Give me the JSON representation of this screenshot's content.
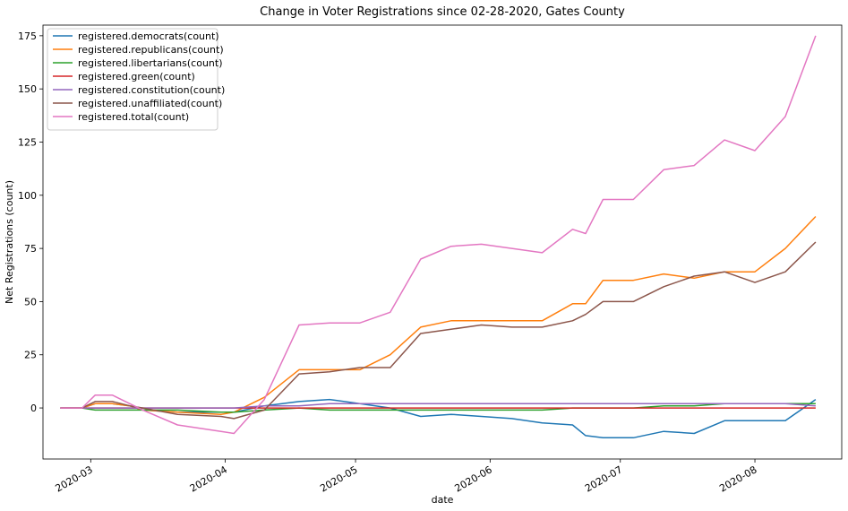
{
  "chart_data": {
    "type": "line",
    "title": "Change in Voter Registrations since 02-28-2020, Gates County",
    "xlabel": "date",
    "ylabel": "Net Registrations (count)",
    "x_axis_type": "date",
    "xlim": [
      "2020-02-19",
      "2020-08-21"
    ],
    "ylim": [
      -24,
      180
    ],
    "x_ticks": [
      {
        "date": "2020-03-01",
        "label": "2020-03"
      },
      {
        "date": "2020-04-01",
        "label": "2020-04"
      },
      {
        "date": "2020-05-01",
        "label": "2020-05"
      },
      {
        "date": "2020-06-01",
        "label": "2020-06"
      },
      {
        "date": "2020-07-01",
        "label": "2020-07"
      },
      {
        "date": "2020-08-01",
        "label": "2020-08"
      }
    ],
    "y_ticks": [
      0,
      25,
      50,
      75,
      100,
      125,
      150,
      175
    ],
    "grid": false,
    "legend_position": "top-left",
    "series": [
      {
        "name": "registered.democrats(count)",
        "color": "#1f77b4",
        "points": [
          [
            "2020-02-23",
            0
          ],
          [
            "2020-02-28",
            0
          ],
          [
            "2020-03-02",
            2
          ],
          [
            "2020-03-06",
            2
          ],
          [
            "2020-03-10",
            1
          ],
          [
            "2020-03-13",
            -1
          ],
          [
            "2020-03-21",
            -2
          ],
          [
            "2020-03-31",
            -2
          ],
          [
            "2020-04-03",
            -2
          ],
          [
            "2020-04-10",
            1
          ],
          [
            "2020-04-18",
            3
          ],
          [
            "2020-04-25",
            4
          ],
          [
            "2020-05-02",
            2
          ],
          [
            "2020-05-09",
            0
          ],
          [
            "2020-05-16",
            -4
          ],
          [
            "2020-05-23",
            -3
          ],
          [
            "2020-05-30",
            -4
          ],
          [
            "2020-06-06",
            -5
          ],
          [
            "2020-06-13",
            -7
          ],
          [
            "2020-06-20",
            -8
          ],
          [
            "2020-06-23",
            -13
          ],
          [
            "2020-06-27",
            -14
          ],
          [
            "2020-07-04",
            -14
          ],
          [
            "2020-07-11",
            -11
          ],
          [
            "2020-07-18",
            -12
          ],
          [
            "2020-07-25",
            -6
          ],
          [
            "2020-08-01",
            -6
          ],
          [
            "2020-08-08",
            -6
          ],
          [
            "2020-08-15",
            4
          ]
        ]
      },
      {
        "name": "registered.republicans(count)",
        "color": "#ff7f0e",
        "points": [
          [
            "2020-02-23",
            0
          ],
          [
            "2020-02-28",
            0
          ],
          [
            "2020-03-02",
            2
          ],
          [
            "2020-03-06",
            2
          ],
          [
            "2020-03-10",
            1
          ],
          [
            "2020-03-13",
            -1
          ],
          [
            "2020-03-21",
            -2
          ],
          [
            "2020-03-31",
            -3
          ],
          [
            "2020-04-03",
            -2
          ],
          [
            "2020-04-10",
            5
          ],
          [
            "2020-04-18",
            18
          ],
          [
            "2020-04-25",
            18
          ],
          [
            "2020-05-02",
            18
          ],
          [
            "2020-05-09",
            25
          ],
          [
            "2020-05-16",
            38
          ],
          [
            "2020-05-23",
            41
          ],
          [
            "2020-05-30",
            41
          ],
          [
            "2020-06-06",
            41
          ],
          [
            "2020-06-13",
            41
          ],
          [
            "2020-06-20",
            49
          ],
          [
            "2020-06-23",
            49
          ],
          [
            "2020-06-27",
            60
          ],
          [
            "2020-07-04",
            60
          ],
          [
            "2020-07-11",
            63
          ],
          [
            "2020-07-18",
            61
          ],
          [
            "2020-07-25",
            64
          ],
          [
            "2020-08-01",
            64
          ],
          [
            "2020-08-08",
            75
          ],
          [
            "2020-08-15",
            90
          ]
        ]
      },
      {
        "name": "registered.libertarians(count)",
        "color": "#2ca02c",
        "points": [
          [
            "2020-02-23",
            0
          ],
          [
            "2020-02-28",
            0
          ],
          [
            "2020-03-02",
            -1
          ],
          [
            "2020-03-06",
            -1
          ],
          [
            "2020-03-10",
            -1
          ],
          [
            "2020-03-13",
            -1
          ],
          [
            "2020-03-21",
            -1
          ],
          [
            "2020-03-31",
            -2
          ],
          [
            "2020-04-03",
            -2
          ],
          [
            "2020-04-10",
            -1
          ],
          [
            "2020-04-18",
            0
          ],
          [
            "2020-04-25",
            -1
          ],
          [
            "2020-05-02",
            -1
          ],
          [
            "2020-05-09",
            -1
          ],
          [
            "2020-05-16",
            -1
          ],
          [
            "2020-05-23",
            -1
          ],
          [
            "2020-05-30",
            -1
          ],
          [
            "2020-06-06",
            -1
          ],
          [
            "2020-06-13",
            -1
          ],
          [
            "2020-06-20",
            0
          ],
          [
            "2020-06-23",
            0
          ],
          [
            "2020-06-27",
            0
          ],
          [
            "2020-07-04",
            0
          ],
          [
            "2020-07-11",
            1
          ],
          [
            "2020-07-18",
            1
          ],
          [
            "2020-07-25",
            2
          ],
          [
            "2020-08-01",
            2
          ],
          [
            "2020-08-08",
            2
          ],
          [
            "2020-08-15",
            2
          ]
        ]
      },
      {
        "name": "registered.green(count)",
        "color": "#d62728",
        "points": [
          [
            "2020-02-23",
            0
          ],
          [
            "2020-02-28",
            0
          ],
          [
            "2020-03-02",
            0
          ],
          [
            "2020-03-06",
            0
          ],
          [
            "2020-03-10",
            0
          ],
          [
            "2020-03-13",
            0
          ],
          [
            "2020-03-21",
            0
          ],
          [
            "2020-03-31",
            0
          ],
          [
            "2020-04-03",
            0
          ],
          [
            "2020-04-10",
            0
          ],
          [
            "2020-04-18",
            0
          ],
          [
            "2020-04-25",
            0
          ],
          [
            "2020-05-02",
            0
          ],
          [
            "2020-05-09",
            0
          ],
          [
            "2020-05-16",
            0
          ],
          [
            "2020-05-23",
            0
          ],
          [
            "2020-05-30",
            0
          ],
          [
            "2020-06-06",
            0
          ],
          [
            "2020-06-13",
            0
          ],
          [
            "2020-06-20",
            0
          ],
          [
            "2020-06-23",
            0
          ],
          [
            "2020-06-27",
            0
          ],
          [
            "2020-07-04",
            0
          ],
          [
            "2020-07-11",
            0
          ],
          [
            "2020-07-18",
            0
          ],
          [
            "2020-07-25",
            0
          ],
          [
            "2020-08-01",
            0
          ],
          [
            "2020-08-08",
            0
          ],
          [
            "2020-08-15",
            0
          ]
        ]
      },
      {
        "name": "registered.constitution(count)",
        "color": "#9467bd",
        "points": [
          [
            "2020-02-23",
            0
          ],
          [
            "2020-02-28",
            0
          ],
          [
            "2020-03-02",
            0
          ],
          [
            "2020-03-06",
            0
          ],
          [
            "2020-03-10",
            0
          ],
          [
            "2020-03-13",
            0
          ],
          [
            "2020-03-21",
            0
          ],
          [
            "2020-03-31",
            0
          ],
          [
            "2020-04-03",
            0
          ],
          [
            "2020-04-10",
            1
          ],
          [
            "2020-04-18",
            1
          ],
          [
            "2020-04-25",
            2
          ],
          [
            "2020-05-02",
            2
          ],
          [
            "2020-05-09",
            2
          ],
          [
            "2020-05-16",
            2
          ],
          [
            "2020-05-23",
            2
          ],
          [
            "2020-05-30",
            2
          ],
          [
            "2020-06-06",
            2
          ],
          [
            "2020-06-13",
            2
          ],
          [
            "2020-06-20",
            2
          ],
          [
            "2020-06-23",
            2
          ],
          [
            "2020-06-27",
            2
          ],
          [
            "2020-07-04",
            2
          ],
          [
            "2020-07-11",
            2
          ],
          [
            "2020-07-18",
            2
          ],
          [
            "2020-07-25",
            2
          ],
          [
            "2020-08-01",
            2
          ],
          [
            "2020-08-08",
            2
          ],
          [
            "2020-08-15",
            1
          ]
        ]
      },
      {
        "name": "registered.unaffiliated(count)",
        "color": "#8c564b",
        "points": [
          [
            "2020-02-23",
            0
          ],
          [
            "2020-02-28",
            0
          ],
          [
            "2020-03-02",
            3
          ],
          [
            "2020-03-06",
            3
          ],
          [
            "2020-03-10",
            1
          ],
          [
            "2020-03-13",
            0
          ],
          [
            "2020-03-21",
            -3
          ],
          [
            "2020-03-31",
            -4
          ],
          [
            "2020-04-03",
            -5
          ],
          [
            "2020-04-10",
            -1
          ],
          [
            "2020-04-18",
            16
          ],
          [
            "2020-04-25",
            17
          ],
          [
            "2020-05-02",
            19
          ],
          [
            "2020-05-09",
            19
          ],
          [
            "2020-05-16",
            35
          ],
          [
            "2020-05-23",
            37
          ],
          [
            "2020-05-30",
            39
          ],
          [
            "2020-06-06",
            38
          ],
          [
            "2020-06-13",
            38
          ],
          [
            "2020-06-20",
            41
          ],
          [
            "2020-06-23",
            44
          ],
          [
            "2020-06-27",
            50
          ],
          [
            "2020-07-04",
            50
          ],
          [
            "2020-07-11",
            57
          ],
          [
            "2020-07-18",
            62
          ],
          [
            "2020-07-25",
            64
          ],
          [
            "2020-08-01",
            59
          ],
          [
            "2020-08-08",
            64
          ],
          [
            "2020-08-15",
            78
          ]
        ]
      },
      {
        "name": "registered.total(count)",
        "color": "#e377c2",
        "points": [
          [
            "2020-02-23",
            0
          ],
          [
            "2020-02-28",
            0
          ],
          [
            "2020-03-02",
            6
          ],
          [
            "2020-03-06",
            6
          ],
          [
            "2020-03-10",
            2
          ],
          [
            "2020-03-13",
            -1
          ],
          [
            "2020-03-21",
            -8
          ],
          [
            "2020-03-31",
            -11
          ],
          [
            "2020-04-03",
            -12
          ],
          [
            "2020-04-10",
            4
          ],
          [
            "2020-04-18",
            39
          ],
          [
            "2020-04-25",
            40
          ],
          [
            "2020-05-02",
            40
          ],
          [
            "2020-05-09",
            45
          ],
          [
            "2020-05-16",
            70
          ],
          [
            "2020-05-23",
            76
          ],
          [
            "2020-05-30",
            77
          ],
          [
            "2020-06-06",
            75
          ],
          [
            "2020-06-13",
            73
          ],
          [
            "2020-06-20",
            84
          ],
          [
            "2020-06-23",
            82
          ],
          [
            "2020-06-27",
            98
          ],
          [
            "2020-07-04",
            98
          ],
          [
            "2020-07-11",
            112
          ],
          [
            "2020-07-18",
            114
          ],
          [
            "2020-07-25",
            126
          ],
          [
            "2020-08-01",
            121
          ],
          [
            "2020-08-08",
            137
          ],
          [
            "2020-08-15",
            175
          ]
        ]
      }
    ]
  }
}
